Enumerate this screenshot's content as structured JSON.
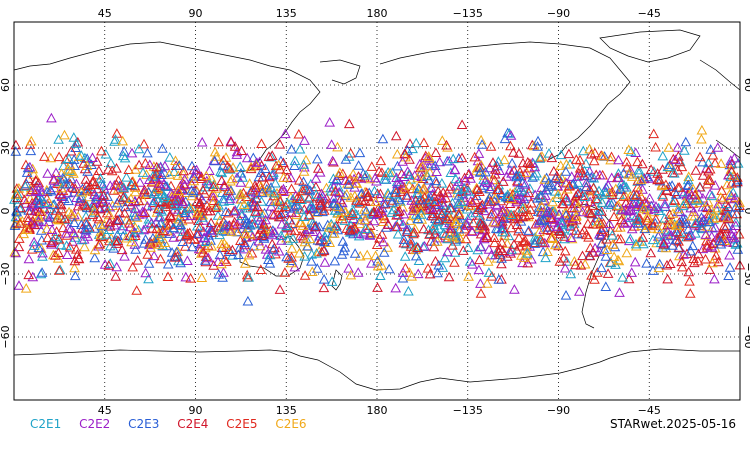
{
  "map": {
    "type": "scatter-map",
    "projection": "equirectangular",
    "center_longitude": 180,
    "lon_range": [
      0,
      360
    ],
    "lat_range": [
      -90,
      90
    ],
    "lon_ticks": [
      45,
      90,
      135,
      180,
      225,
      270,
      315
    ],
    "lon_tick_labels": [
      "45",
      "90",
      "135",
      "180",
      "−135",
      "−90",
      "−45"
    ],
    "lat_ticks": [
      60,
      30,
      0,
      -30,
      -60
    ],
    "lat_tick_labels": [
      "60",
      "30",
      "0",
      "−30",
      "−60"
    ],
    "grid": "dotted",
    "marker": "open-triangle",
    "data_lat_range": [
      -45,
      45
    ]
  },
  "legend": {
    "items": [
      {
        "label": "C2E1",
        "color": "#1fa3c8"
      },
      {
        "label": "C2E2",
        "color": "#9b1fc8"
      },
      {
        "label": "C2E3",
        "color": "#2a5fd6"
      },
      {
        "label": "C2E4",
        "color": "#d0152a"
      },
      {
        "label": "C2E5",
        "color": "#e0281e"
      },
      {
        "label": "C2E6",
        "color": "#f0a818"
      }
    ]
  },
  "footer": {
    "stamp": "STARwet.2025-05-16"
  }
}
